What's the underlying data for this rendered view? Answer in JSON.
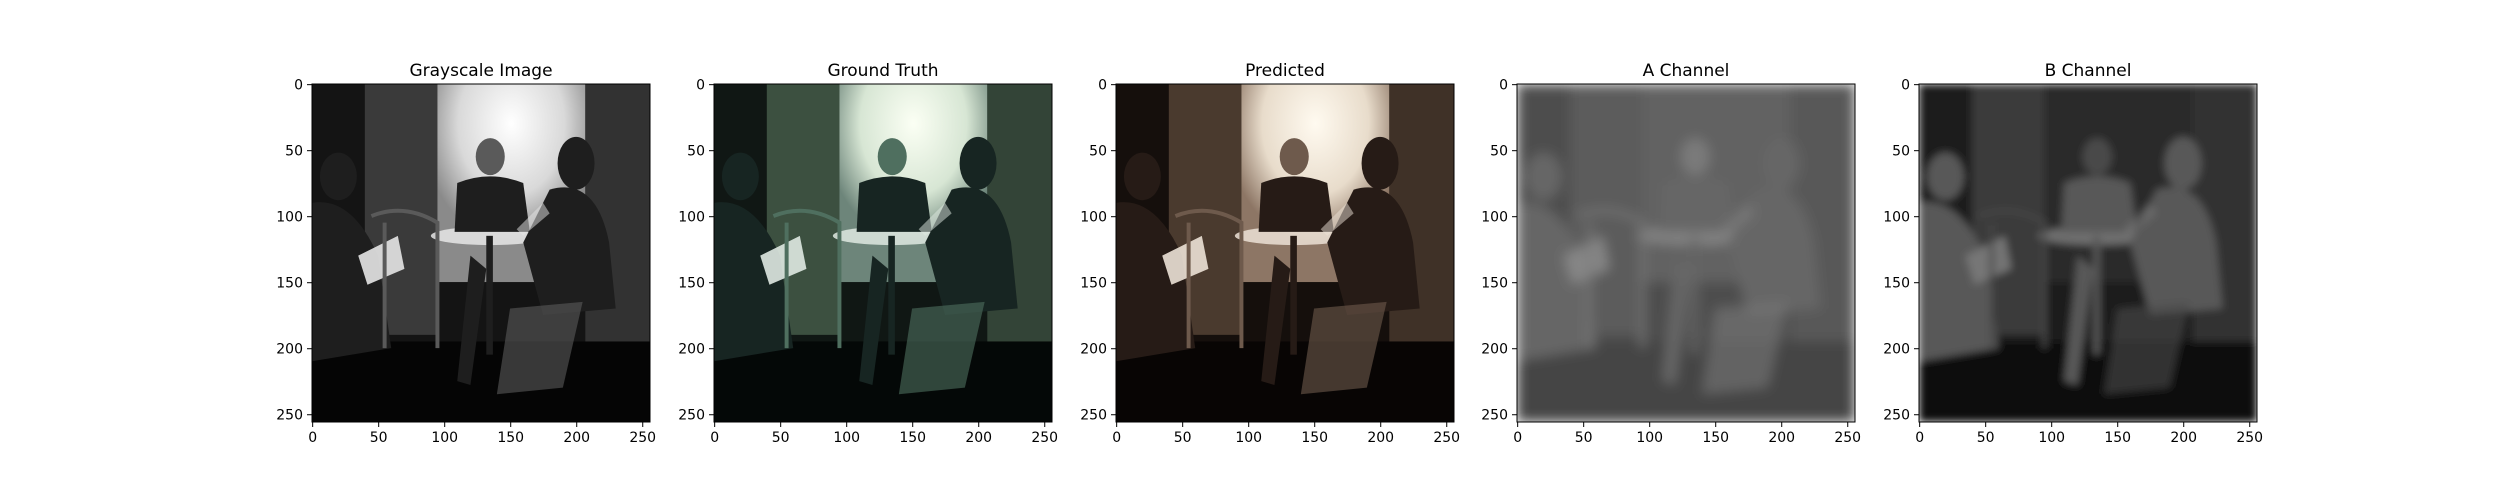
{
  "figure": {
    "panels": [
      {
        "title": "Grayscale Image",
        "image": "grayscale cafe scene",
        "kind": "gray"
      },
      {
        "title": "Ground Truth",
        "image": "color cafe scene (teal/green tint)",
        "kind": "truth"
      },
      {
        "title": "Predicted",
        "image": "colorized cafe scene (sepia tint)",
        "kind": "pred"
      },
      {
        "title": "A Channel",
        "image": "A channel map (mid-gray, blurred)",
        "kind": "achan"
      },
      {
        "title": "B Channel",
        "image": "B channel map (dark gray, blurred)",
        "kind": "bchan"
      }
    ],
    "x_ticks": [
      0,
      50,
      100,
      150,
      200,
      250
    ],
    "y_ticks": [
      0,
      50,
      100,
      150,
      200,
      250
    ],
    "axis_range": [
      0,
      255
    ]
  }
}
